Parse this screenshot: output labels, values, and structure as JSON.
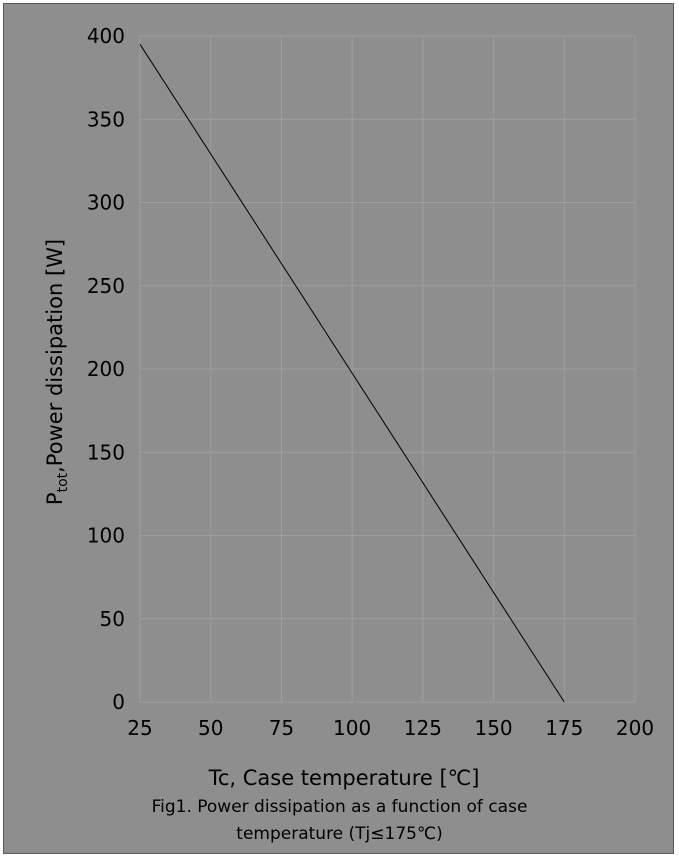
{
  "chart_data": {
    "type": "line",
    "xlabel": "Tc, Case temperature [℃]",
    "ylabel_main": "P",
    "ylabel_sub": "tot",
    "ylabel_rest": ",Power dissipation [W]",
    "xlim": [
      25,
      200
    ],
    "ylim": [
      0,
      400
    ],
    "xticks": [
      "25",
      "50",
      "75",
      "100",
      "125",
      "150",
      "175",
      "200"
    ],
    "yticks": [
      "0",
      "50",
      "100",
      "150",
      "200",
      "250",
      "300",
      "350",
      "400"
    ],
    "grid": true,
    "series": [
      {
        "x": [
          25,
          175
        ],
        "y": [
          395,
          0
        ]
      }
    ],
    "colors": {
      "background": "#8e8e8e",
      "grid": "#9e9e9e",
      "line": "#000000"
    }
  },
  "caption": {
    "line1": "Fig1. Power dissipation as a function of case",
    "line2": "temperature (Tj≤175℃)"
  }
}
